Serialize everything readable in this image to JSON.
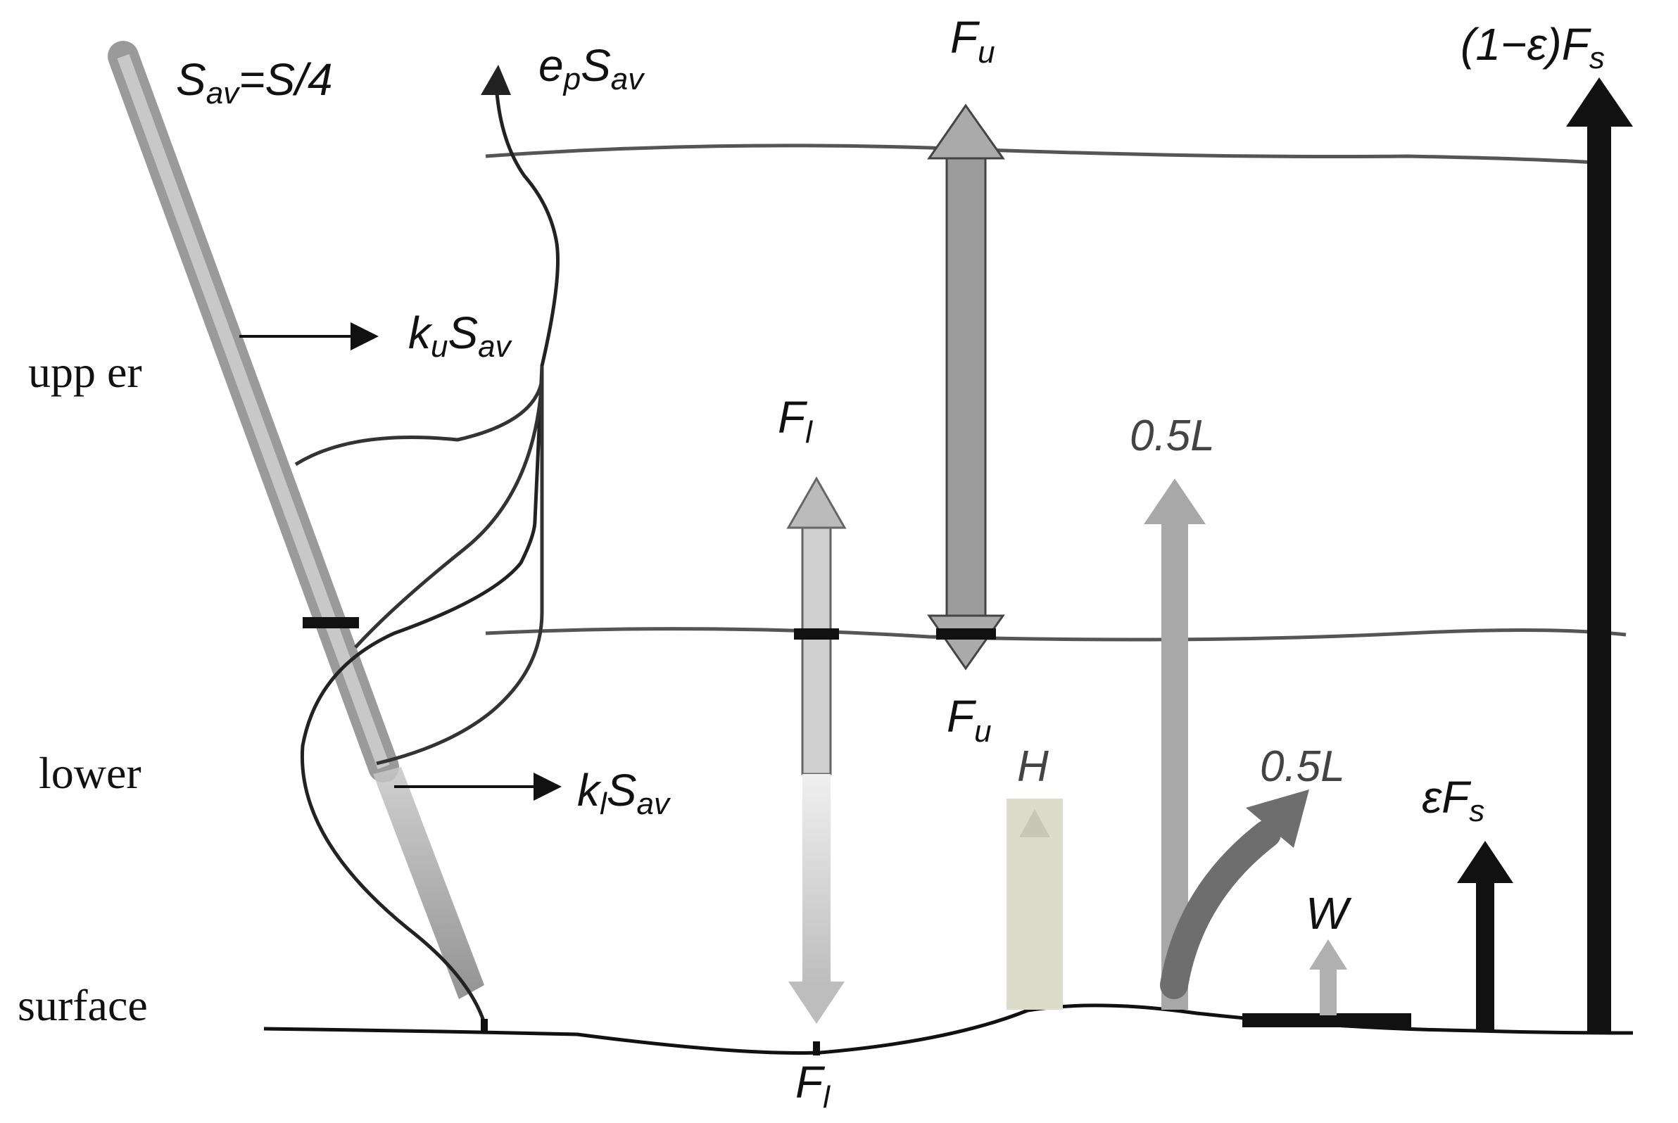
{
  "labels": {
    "upper": "upp er",
    "lower": "lower",
    "surface": "surface"
  },
  "symbols": {
    "s_av": {
      "main": "S",
      "sub": "av",
      "rest": "=S/4"
    },
    "e_p_s_av": {
      "main": "e",
      "sub": "p",
      "main2": "S",
      "sub2": "av"
    },
    "k_u_s_av": {
      "main": "k",
      "sub": "u",
      "main2": "S",
      "sub2": "av"
    },
    "k_l_s_av": {
      "main": "k",
      "sub": "l",
      "main2": "S",
      "sub2": "av"
    },
    "f_u_top": {
      "main": "F",
      "sub": "u"
    },
    "f_u_bottom": {
      "main": "F",
      "sub": "u"
    },
    "f_l_mid": {
      "main": "F",
      "sub": "l"
    },
    "f_l_surface": {
      "main": "F",
      "sub": "l"
    },
    "half_l_vertical": "0.5L",
    "half_l_curved": "0.5L",
    "h": "H",
    "w": "W",
    "eps_f_s": {
      "main": "εF",
      "sub": "s"
    },
    "one_minus_eps_f_s": {
      "main": "(1−ε)F",
      "sub": "s"
    }
  },
  "colors": {
    "ink": "#111111",
    "solar_gray": "#9a9a9a",
    "latent_gray": "#a8a8a8",
    "sensible_beige": "#dcdccb",
    "window_gray": "#b0b0b0",
    "curved_gray": "#6e6e6e"
  }
}
